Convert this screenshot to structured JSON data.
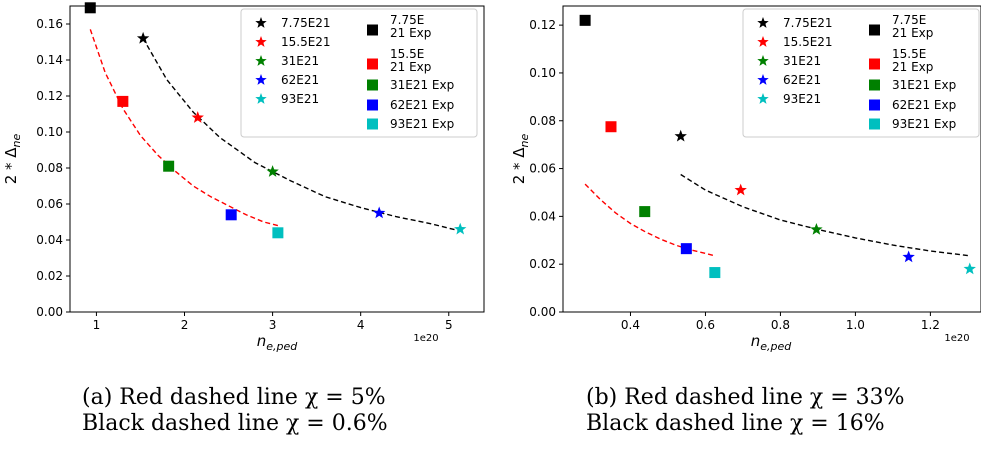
{
  "chart_data": [
    {
      "type": "scatter",
      "title": "",
      "xlabel": "n_{e,ped}",
      "ylabel": "2 * Δ_{ne}",
      "x_exponent_label": "1e20",
      "xlim": [
        0.7,
        5.4
      ],
      "ylim": [
        0,
        0.17
      ],
      "xticks": [
        1,
        2,
        3,
        4,
        5
      ],
      "xtick_labels": [
        "1",
        "2",
        "3",
        "4",
        "5"
      ],
      "yticks": [
        0,
        0.02,
        0.04,
        0.06,
        0.08,
        0.1,
        0.12,
        0.14,
        0.16
      ],
      "ytick_labels": [
        "0.00",
        "0.02",
        "0.04",
        "0.06",
        "0.08",
        "0.10",
        "0.12",
        "0.14",
        "0.16"
      ],
      "grid": false,
      "legend_position": "top-right",
      "series": [
        {
          "name": "7.75E21",
          "marker": "star",
          "color": "#000000",
          "x": [
            1.53
          ],
          "y": [
            0.152
          ]
        },
        {
          "name": "15.5E21",
          "marker": "star",
          "color": "#ff0000",
          "x": [
            2.15
          ],
          "y": [
            0.108
          ]
        },
        {
          "name": "31E21",
          "marker": "star",
          "color": "#008000",
          "x": [
            3.0
          ],
          "y": [
            0.078
          ]
        },
        {
          "name": "62E21",
          "marker": "star",
          "color": "#0000ff",
          "x": [
            4.21
          ],
          "y": [
            0.055
          ]
        },
        {
          "name": "93E21",
          "marker": "star",
          "color": "#00bfbf",
          "x": [
            5.13
          ],
          "y": [
            0.046
          ]
        },
        {
          "name": "7.75E\n21 Exp",
          "marker": "square",
          "color": "#000000",
          "x": [
            0.93
          ],
          "y": [
            0.169
          ]
        },
        {
          "name": "15.5E\n21 Exp",
          "marker": "square",
          "color": "#ff0000",
          "x": [
            1.3
          ],
          "y": [
            0.117
          ]
        },
        {
          "name": "31E21 Exp",
          "marker": "square",
          "color": "#008000",
          "x": [
            1.82
          ],
          "y": [
            0.081
          ]
        },
        {
          "name": "62E21 Exp",
          "marker": "square",
          "color": "#0000ff",
          "x": [
            2.53
          ],
          "y": [
            0.054
          ]
        },
        {
          "name": "93E21 Exp",
          "marker": "square",
          "color": "#00bfbf",
          "x": [
            3.06
          ],
          "y": [
            0.044
          ]
        }
      ],
      "fit_lines": [
        {
          "color": "#ff0000",
          "style": "dashed",
          "x": [
            0.93,
            1.1,
            1.3,
            1.5,
            1.7,
            1.9,
            2.1,
            2.3,
            2.5,
            2.7,
            2.9,
            3.06
          ],
          "y": [
            0.157,
            0.133,
            0.113,
            0.098,
            0.087,
            0.078,
            0.07,
            0.064,
            0.059,
            0.054,
            0.05,
            0.048
          ]
        },
        {
          "color": "#000000",
          "style": "dashed",
          "x": [
            1.53,
            1.8,
            2.1,
            2.4,
            2.8,
            3.2,
            3.6,
            4.0,
            4.4,
            4.8,
            5.13
          ],
          "y": [
            0.152,
            0.129,
            0.111,
            0.097,
            0.083,
            0.073,
            0.064,
            0.058,
            0.053,
            0.049,
            0.045
          ]
        }
      ]
    },
    {
      "type": "scatter",
      "title": "",
      "xlabel": "n_{e,ped}",
      "ylabel": "2 * Δ_{ne}",
      "x_exponent_label": "1e20",
      "xlim": [
        0.22,
        1.335
      ],
      "ylim": [
        0,
        0.128
      ],
      "xticks": [
        0.4,
        0.6,
        0.8,
        1.0,
        1.2
      ],
      "xtick_labels": [
        "0.4",
        "0.6",
        "0.8",
        "1.0",
        "1.2"
      ],
      "yticks": [
        0,
        0.02,
        0.04,
        0.06,
        0.08,
        0.1,
        0.12
      ],
      "ytick_labels": [
        "0.00",
        "0.02",
        "0.04",
        "0.06",
        "0.08",
        "0.10",
        "0.12"
      ],
      "grid": false,
      "legend_position": "top-right",
      "series": [
        {
          "name": "7.75E21",
          "marker": "star",
          "color": "#000000",
          "x": [
            0.534
          ],
          "y": [
            0.0735
          ]
        },
        {
          "name": "15.5E21",
          "marker": "star",
          "color": "#ff0000",
          "x": [
            0.694
          ],
          "y": [
            0.051
          ]
        },
        {
          "name": "31E21",
          "marker": "star",
          "color": "#008000",
          "x": [
            0.896
          ],
          "y": [
            0.0345
          ]
        },
        {
          "name": "62E21",
          "marker": "star",
          "color": "#0000ff",
          "x": [
            1.142
          ],
          "y": [
            0.023
          ]
        },
        {
          "name": "93E21",
          "marker": "star",
          "color": "#00bfbf",
          "x": [
            1.305
          ],
          "y": [
            0.018
          ]
        },
        {
          "name": "7.75E\n21 Exp",
          "marker": "square",
          "color": "#000000",
          "x": [
            0.279
          ],
          "y": [
            0.122
          ]
        },
        {
          "name": "15.5E\n21 Exp",
          "marker": "square",
          "color": "#ff0000",
          "x": [
            0.348
          ],
          "y": [
            0.0775
          ]
        },
        {
          "name": "31E21 Exp",
          "marker": "square",
          "color": "#008000",
          "x": [
            0.438
          ],
          "y": [
            0.042
          ]
        },
        {
          "name": "62E21 Exp",
          "marker": "square",
          "color": "#0000ff",
          "x": [
            0.549
          ],
          "y": [
            0.0265
          ]
        },
        {
          "name": "93E21 Exp",
          "marker": "square",
          "color": "#00bfbf",
          "x": [
            0.625
          ],
          "y": [
            0.0165
          ]
        }
      ],
      "fit_lines": [
        {
          "color": "#ff0000",
          "style": "dashed",
          "x": [
            0.279,
            0.32,
            0.36,
            0.4,
            0.44,
            0.48,
            0.52,
            0.56,
            0.6,
            0.625
          ],
          "y": [
            0.0535,
            0.047,
            0.0415,
            0.037,
            0.0335,
            0.0305,
            0.028,
            0.026,
            0.0245,
            0.0235
          ]
        },
        {
          "color": "#000000",
          "style": "dashed",
          "x": [
            0.534,
            0.6,
            0.7,
            0.8,
            0.9,
            1.0,
            1.1,
            1.2,
            1.305
          ],
          "y": [
            0.0575,
            0.051,
            0.044,
            0.0385,
            0.0345,
            0.031,
            0.028,
            0.0255,
            0.0235
          ]
        }
      ]
    }
  ],
  "captions": {
    "a_line1": "(a) Red dashed line χ = 5%",
    "a_line2": "Black dashed line χ = 0.6%",
    "b_line1": "(b) Red dashed line χ = 33%",
    "b_line2": "Black dashed line χ = 16%"
  }
}
